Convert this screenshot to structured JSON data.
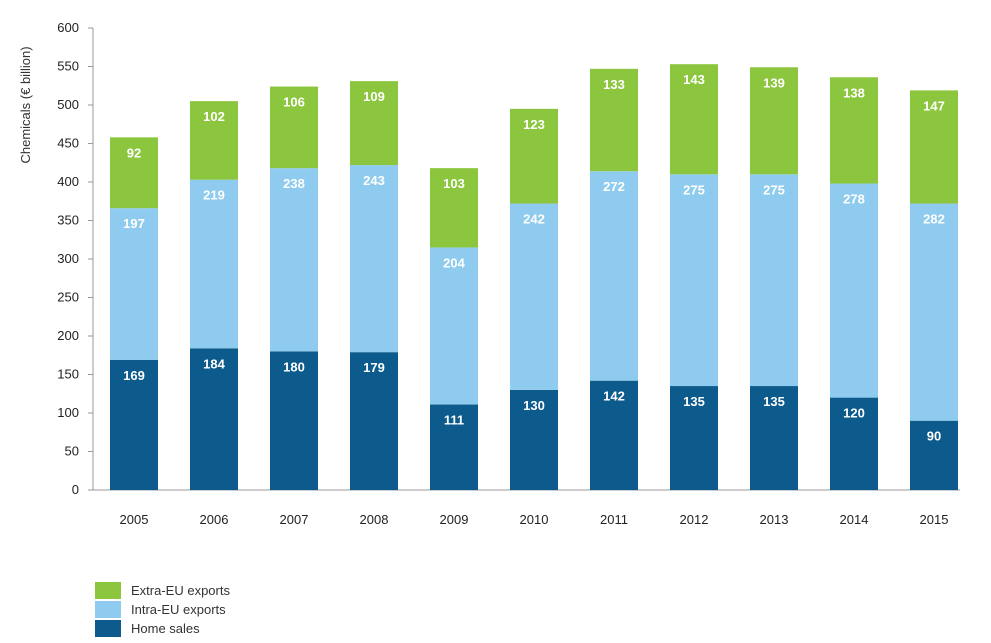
{
  "chart_data": {
    "type": "bar",
    "stacked": true,
    "categories": [
      "2005",
      "2006",
      "2007",
      "2008",
      "2009",
      "2010",
      "2011",
      "2012",
      "2013",
      "2014",
      "2015"
    ],
    "series": [
      {
        "name": "Home sales",
        "color": "#0d5a8c",
        "values": [
          169,
          184,
          180,
          179,
          111,
          130,
          142,
          135,
          135,
          120,
          90
        ]
      },
      {
        "name": "Intra-EU exports",
        "color": "#8fcbee",
        "values": [
          197,
          219,
          238,
          243,
          204,
          242,
          272,
          275,
          275,
          278,
          282
        ]
      },
      {
        "name": "Extra-EU exports",
        "color": "#8cc63f",
        "values": [
          92,
          102,
          106,
          109,
          103,
          123,
          133,
          143,
          139,
          138,
          147
        ]
      }
    ],
    "legend_order": [
      "Extra-EU exports",
      "Intra-EU exports",
      "Home sales"
    ],
    "legend_position": "bottom-left",
    "title": "",
    "xlabel": "",
    "ylabel": "Chemicals (€ billion)",
    "ylim": [
      0,
      600
    ],
    "yticks": [
      0,
      50,
      100,
      150,
      200,
      250,
      300,
      350,
      400,
      450,
      500,
      550,
      600
    ],
    "grid": false
  }
}
